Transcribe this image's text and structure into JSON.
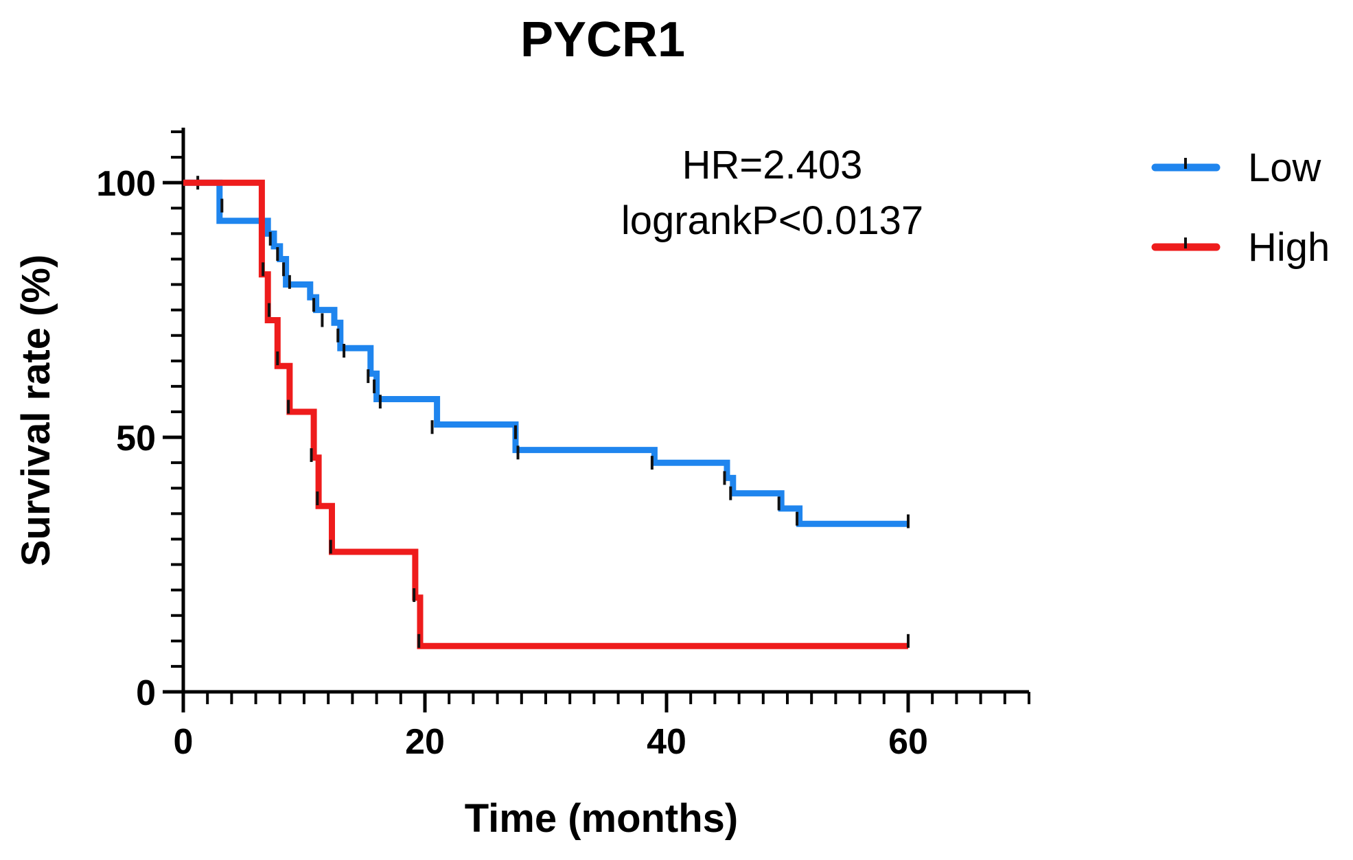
{
  "chart_data": {
    "type": "line",
    "step": true,
    "title": "PYCR1",
    "xlabel": "Time (months)",
    "ylabel": "Survival rate (%)",
    "xlim": [
      0,
      70
    ],
    "ylim": [
      0,
      110
    ],
    "x_ticks": [
      0,
      20,
      40,
      60
    ],
    "y_ticks": [
      0,
      50,
      100
    ],
    "x_minor_step": 2,
    "y_minor_step": 5,
    "grid": false,
    "legend_position": "right",
    "annotations": [
      "HR=2.403",
      "logrankP<0.0137"
    ],
    "series": [
      {
        "name": "Low",
        "color": "#1f85ee",
        "x": [
          0,
          3,
          7,
          7.5,
          8,
          8.5,
          10.5,
          11,
          12.5,
          13,
          15.5,
          16,
          21,
          27.5,
          39,
          45,
          45.5,
          49.5,
          51,
          60
        ],
        "y": [
          100,
          92.5,
          90,
          87.5,
          85,
          80,
          77.5,
          75,
          72.5,
          67.5,
          62.5,
          57.5,
          52.5,
          47.5,
          45,
          42,
          39,
          36,
          33,
          33
        ],
        "censored": [
          [
            1.2,
            100
          ],
          [
            3.2,
            95.5
          ],
          [
            6.6,
            92
          ],
          [
            7.2,
            89
          ],
          [
            7.8,
            86
          ],
          [
            8.3,
            83
          ],
          [
            8.8,
            80.5
          ],
          [
            10.8,
            76
          ],
          [
            11.5,
            73
          ],
          [
            12.8,
            70
          ],
          [
            13.3,
            67
          ],
          [
            15.3,
            62
          ],
          [
            15.8,
            60
          ],
          [
            16.3,
            57
          ],
          [
            20.6,
            52
          ],
          [
            27.5,
            51
          ],
          [
            27.7,
            47
          ],
          [
            38.8,
            45
          ],
          [
            44.8,
            42
          ],
          [
            45.3,
            39
          ],
          [
            49.3,
            37
          ],
          [
            50.8,
            34
          ],
          [
            60,
            33.5
          ]
        ]
      },
      {
        "name": "High",
        "color": "#ee1c1c",
        "x": [
          0,
          6.5,
          7,
          7.8,
          8.8,
          10.8,
          11.2,
          12.3,
          19.2,
          19.6,
          60
        ],
        "y": [
          100,
          82,
          73,
          64,
          55,
          46,
          36.5,
          27.5,
          18.5,
          9,
          9
        ],
        "censored": [
          [
            6.6,
            83
          ],
          [
            7.1,
            75
          ],
          [
            7.8,
            65.5
          ],
          [
            8.7,
            56
          ],
          [
            10.6,
            46.5
          ],
          [
            11.1,
            38
          ],
          [
            12.2,
            28.5
          ],
          [
            19.1,
            19
          ],
          [
            19.5,
            10
          ],
          [
            60,
            10
          ]
        ]
      }
    ]
  }
}
